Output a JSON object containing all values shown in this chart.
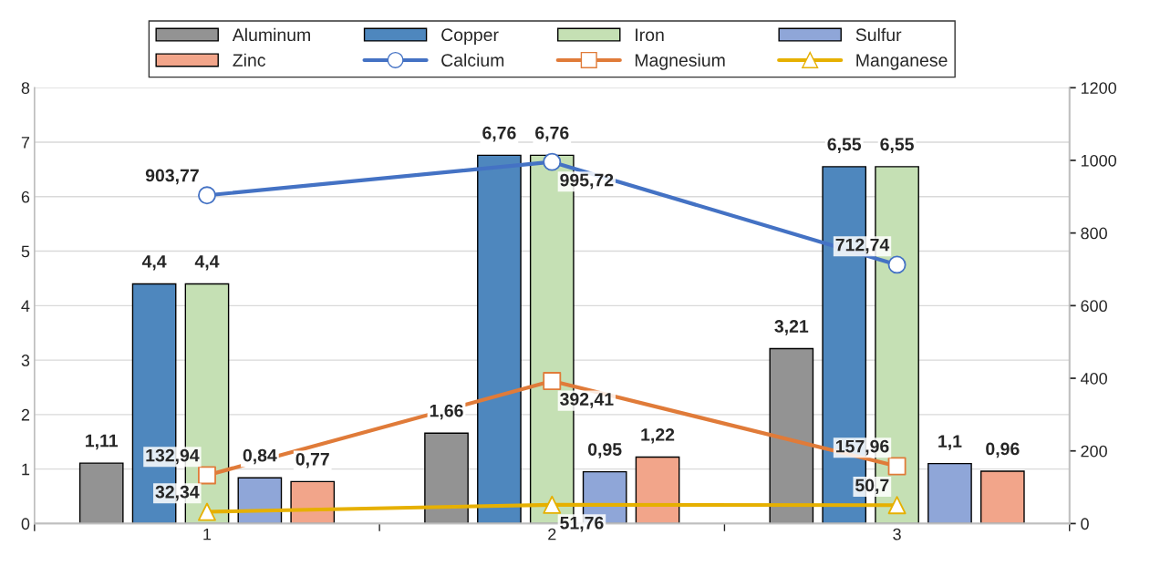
{
  "chart_data": {
    "type": "bar",
    "categories": [
      "1",
      "2",
      "3"
    ],
    "series": [
      {
        "name": "Aluminum",
        "color": "#939393",
        "values": [
          1.11,
          1.66,
          3.21
        ],
        "value_labels": [
          "1,11",
          "1,66",
          "3,21"
        ]
      },
      {
        "name": "Copper",
        "color": "#4e87be",
        "values": [
          4.4,
          6.76,
          6.55
        ],
        "value_labels": [
          "4,4",
          "6,76",
          "6,55"
        ]
      },
      {
        "name": "Iron",
        "color": "#c5e0b4",
        "values": [
          4.4,
          6.76,
          6.55
        ],
        "value_labels": [
          "4,4",
          "6,76",
          "6,55"
        ]
      },
      {
        "name": "Sulfur",
        "color": "#8fa6d8",
        "values": [
          0.84,
          0.95,
          1.1
        ],
        "value_labels": [
          "0,84",
          "0,95",
          "1,1"
        ]
      },
      {
        "name": "Zinc",
        "color": "#f2a58a",
        "values": [
          0.77,
          1.22,
          0.96
        ],
        "value_labels": [
          "0,77",
          "1,22",
          "0,96"
        ]
      },
      {
        "name": "Calcium",
        "type": "line",
        "axis": "y2",
        "marker": "circle",
        "color": "#4472c4",
        "values": [
          903.77,
          995.72,
          712.74
        ],
        "value_labels": [
          "903,77",
          "995,72",
          "712,74"
        ]
      },
      {
        "name": "Magnesium",
        "type": "line",
        "axis": "y2",
        "marker": "square",
        "color": "#e07b39",
        "values": [
          132.94,
          392.41,
          157.96
        ],
        "value_labels": [
          "132,94",
          "392,41",
          "157,96"
        ]
      },
      {
        "name": "Manganese",
        "type": "line",
        "axis": "y2",
        "marker": "triangle",
        "color": "#e6b000",
        "values": [
          32.34,
          51.76,
          50.7
        ],
        "value_labels": [
          "32,34",
          "51,76",
          "50,7"
        ]
      }
    ],
    "ylim": [
      0,
      8
    ],
    "yticks": [
      0,
      1,
      2,
      3,
      4,
      5,
      6,
      7,
      8
    ],
    "y2lim": [
      0,
      1200
    ],
    "y2ticks": [
      0,
      200,
      400,
      600,
      800,
      1000,
      1200
    ],
    "grid": "y",
    "legend": "top"
  }
}
